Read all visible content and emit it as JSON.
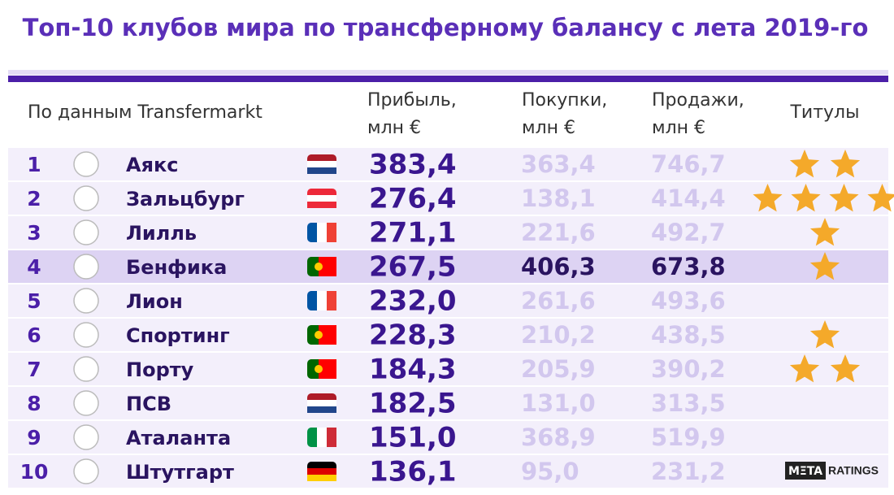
{
  "title": "Топ-10 клубов мира по трансферному балансу с лета 2019-го",
  "source": "По данным Transfermarkt",
  "headers": {
    "profit": [
      "Прибыль,",
      "млн €"
    ],
    "buys": [
      "Покупки,",
      "млн €"
    ],
    "sells": [
      "Продажи,",
      "млн €"
    ],
    "titles": "Титулы"
  },
  "rows": [
    {
      "rank": "1",
      "club": "Аякс",
      "profit": "383,4",
      "buys": "363,4",
      "sells": "746,7",
      "titles": 2
    },
    {
      "rank": "2",
      "club": "Зальцбург",
      "profit": "276,4",
      "buys": "138,1",
      "sells": "414,4",
      "titles": 4
    },
    {
      "rank": "3",
      "club": "Лилль",
      "profit": "271,1",
      "buys": "221,6",
      "sells": "492,7",
      "titles": 1
    },
    {
      "rank": "4",
      "club": "Бенфика",
      "profit": "267,5",
      "buys": "406,3",
      "sells": "673,8",
      "titles": 1,
      "highlight": true
    },
    {
      "rank": "5",
      "club": "Лион",
      "profit": "232,0",
      "buys": "261,6",
      "sells": "493,6",
      "titles": 0
    },
    {
      "rank": "6",
      "club": "Спортинг",
      "profit": "228,3",
      "buys": "210,2",
      "sells": "438,5",
      "titles": 1
    },
    {
      "rank": "7",
      "club": "Порту",
      "profit": "184,3",
      "buys": "205,9",
      "sells": "390,2",
      "titles": 2
    },
    {
      "rank": "8",
      "club": "ПСВ",
      "profit": "182,5",
      "buys": "131,0",
      "sells": "313,5",
      "titles": 0
    },
    {
      "rank": "9",
      "club": "Аталанта",
      "profit": "151,0",
      "buys": "368,9",
      "sells": "519,9",
      "titles": 0
    },
    {
      "rank": "10",
      "club": "Штутгарт",
      "profit": "136,1",
      "buys": "95,0",
      "sells": "231,2",
      "titles": 0
    }
  ],
  "brand": {
    "left": "MΞTA",
    "right": "RATINGS"
  }
}
